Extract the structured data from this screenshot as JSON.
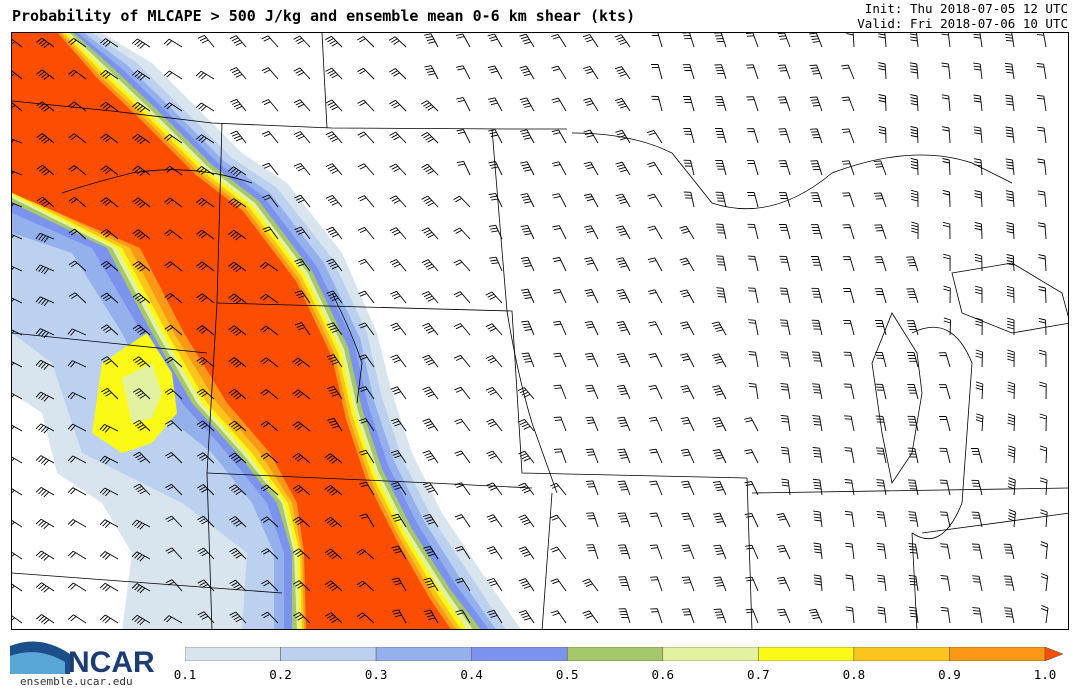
{
  "header": {
    "title": "Probability of MLCAPE > 500 J/kg and ensemble mean 0-6 km shear (kts)",
    "init": "Init: Thu 2018-07-05 12 UTC",
    "valid": "Valid: Fri 2018-07-06 10 UTC"
  },
  "logo": {
    "text": "NCAR",
    "url": "ensemble.ucar.edu"
  },
  "colorbar": {
    "ticks": [
      "0.1",
      "0.2",
      "0.3",
      "0.4",
      "0.5",
      "0.6",
      "0.7",
      "0.8",
      "0.9",
      "1.0"
    ],
    "colors": [
      "#d9e5ee",
      "#bcd0ef",
      "#94b1ee",
      "#7b93ec",
      "#a7c76c",
      "#e3f2a0",
      "#fafa16",
      "#fbc51c",
      "#fb9816"
    ],
    "extend_color": "#fc4e03"
  },
  "map": {
    "colors": {
      "c01": "#d9e5ee",
      "c02": "#bcd0ef",
      "c03": "#94b1ee",
      "c04": "#7b93ec",
      "c05": "#a7c76c",
      "c06": "#e3f2a0",
      "c07": "#fafa16",
      "c08": "#fbc51c",
      "c09": "#fb9816",
      "c10": "#fc4e03"
    }
  }
}
